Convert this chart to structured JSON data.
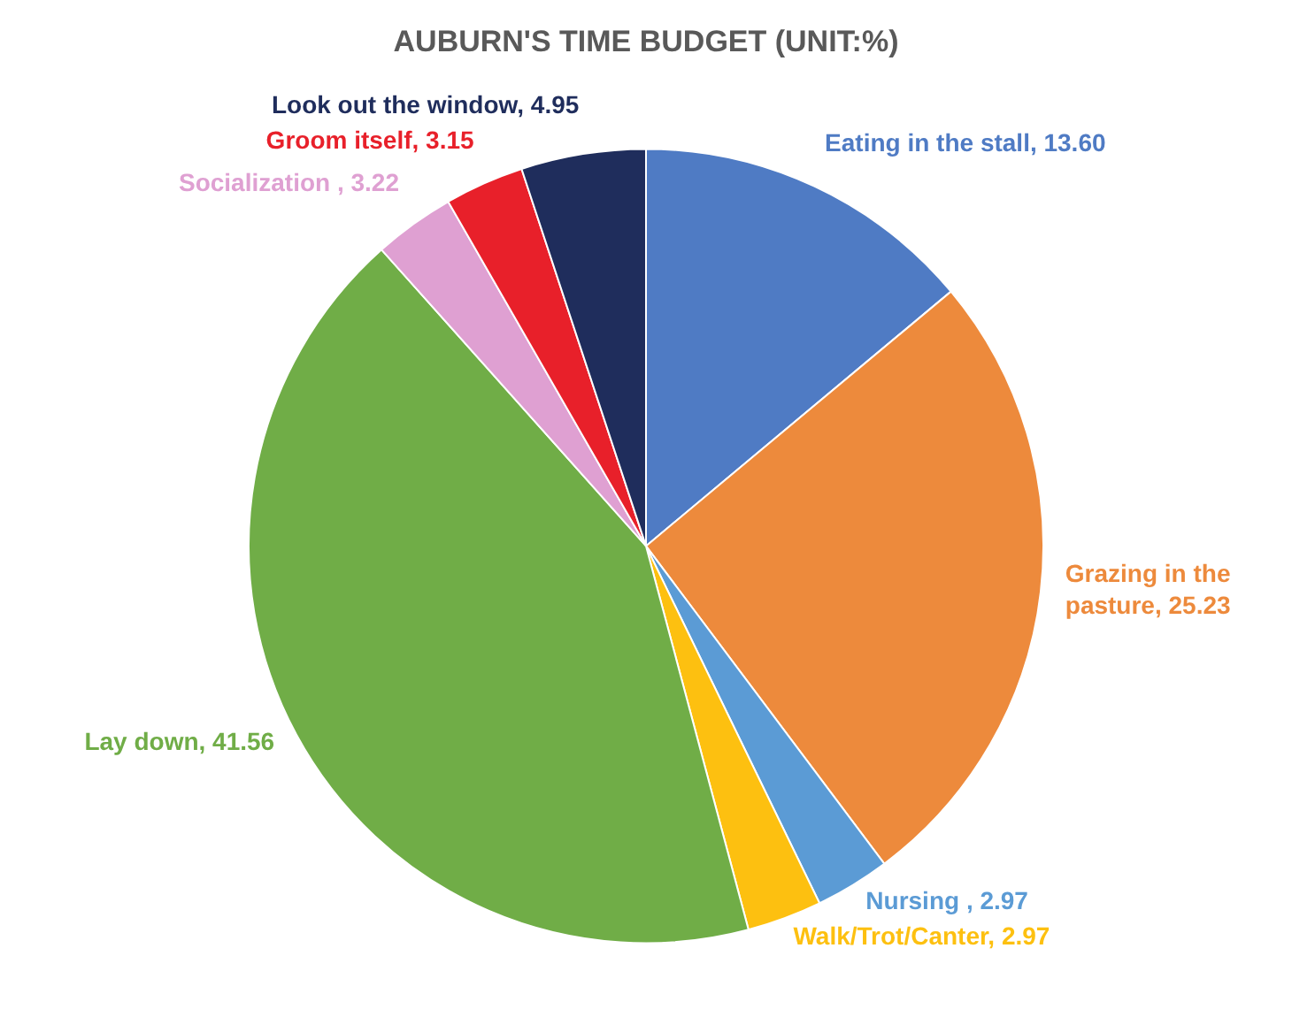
{
  "chart_data": {
    "type": "pie",
    "title": "AUBURN'S TIME BUDGET (UNIT:%)",
    "categories": [
      "Eating in the stall",
      "Grazing in the pasture",
      "Nursing ",
      "Walk/Trot/Canter",
      "Lay down",
      "Socialization ",
      "Groom itself",
      "Look out the window"
    ],
    "values": [
      13.6,
      25.23,
      2.97,
      2.97,
      41.56,
      3.22,
      3.15,
      4.95
    ],
    "value_labels": [
      "13.60",
      "25.23",
      "2.97",
      "2.97",
      "41.56",
      "3.22",
      "3.15",
      "4.95"
    ],
    "colors": [
      "#4f7bc4",
      "#ed8a3c",
      "#5b9bd5",
      "#fdc010",
      "#70ad47",
      "#dfa0d2",
      "#e8202a",
      "#1f2d5c"
    ],
    "legend": false
  }
}
